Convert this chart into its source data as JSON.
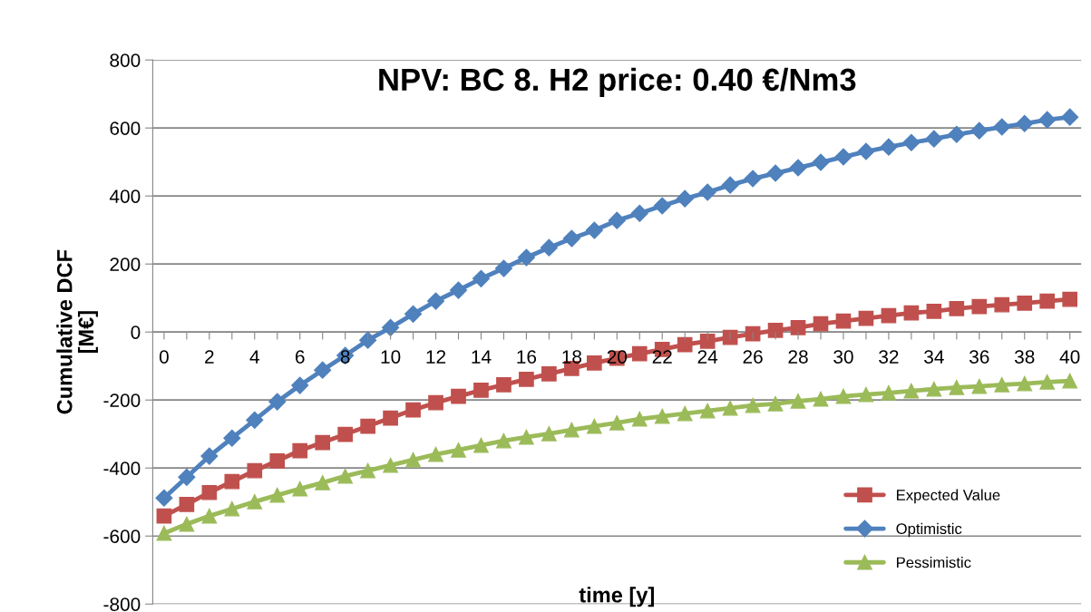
{
  "chart_data": {
    "type": "line",
    "title": "NPV: BC 8. H2 price: 0.40 €/Nm3",
    "xlabel": "time [y]",
    "ylabel": "Cumulative DCF\n[M€]",
    "categories": [
      "0",
      null,
      "2",
      null,
      "4",
      null,
      "6",
      null,
      "8",
      null,
      "10",
      null,
      "12",
      null,
      "14",
      null,
      "16",
      null,
      "18",
      null,
      "20",
      null,
      "22",
      null,
      "24",
      null,
      "26",
      null,
      "28",
      null,
      "30",
      null,
      "32",
      null,
      "34",
      null,
      "36",
      null,
      "38",
      null,
      "40"
    ],
    "series": [
      {
        "name": "Expected Value",
        "color": "#c0504d",
        "marker": "square",
        "values": [
          -541,
          -507,
          -472,
          -440,
          -408,
          -379,
          -349,
          -325,
          -301,
          -277,
          -253,
          -229,
          -208,
          -189,
          -171,
          -155,
          -139,
          -123,
          -107,
          -91,
          -77,
          -64,
          -51,
          -37,
          -27,
          -16,
          -5,
          5,
          13,
          24,
          32,
          40,
          48,
          56,
          61,
          69,
          75,
          80,
          85,
          91,
          96
        ]
      },
      {
        "name": "Optimistic",
        "color": "#4f81bd",
        "marker": "diamond",
        "values": [
          -488,
          -427,
          -365,
          -312,
          -259,
          -205,
          -157,
          -112,
          -69,
          -24,
          13,
          53,
          91,
          123,
          157,
          187,
          219,
          248,
          275,
          299,
          328,
          349,
          371,
          392,
          411,
          432,
          451,
          467,
          483,
          499,
          515,
          531,
          544,
          557,
          568,
          581,
          592,
          603,
          613,
          624,
          632
        ]
      },
      {
        "name": "Pessimistic",
        "color": "#9bbb59",
        "marker": "triangle",
        "values": [
          -592,
          -565,
          -541,
          -520,
          -499,
          -480,
          -461,
          -443,
          -424,
          -408,
          -392,
          -376,
          -360,
          -347,
          -333,
          -320,
          -309,
          -299,
          -288,
          -277,
          -267,
          -256,
          -248,
          -240,
          -232,
          -224,
          -216,
          -211,
          -203,
          -197,
          -189,
          -184,
          -179,
          -173,
          -168,
          -163,
          -160,
          -155,
          -152,
          -147,
          -144
        ]
      }
    ],
    "ylim": [
      -800,
      800
    ],
    "yticks": [
      -800,
      -600,
      -400,
      -200,
      0,
      200,
      400,
      600,
      800
    ],
    "grid": "y",
    "legend": "bottom right",
    "line_style": "solid"
  }
}
